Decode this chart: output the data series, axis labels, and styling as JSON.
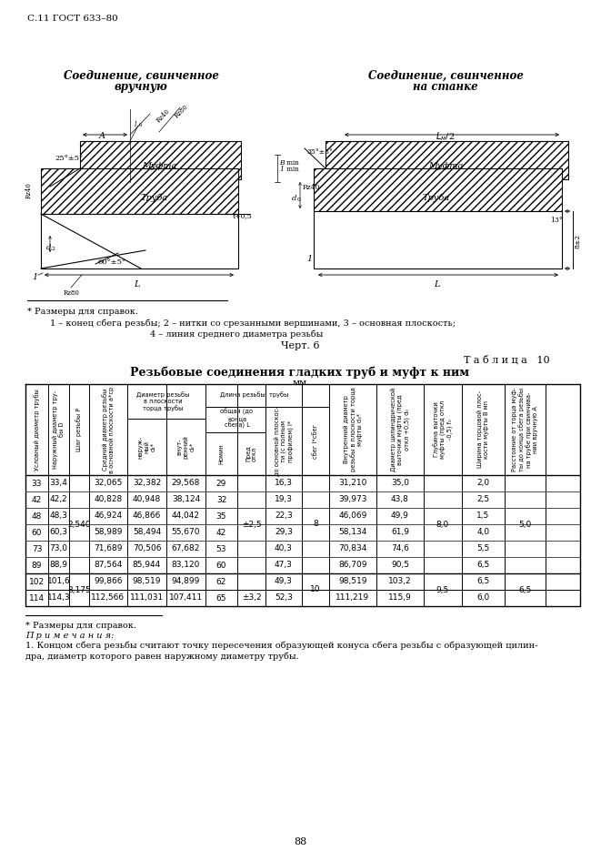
{
  "page_header": "С.11 ГОСТ 633–80",
  "page_number": "88",
  "left_title1": "Соединение, свинченное",
  "left_title2": "вручную",
  "right_title1": "Соединение, свинченное",
  "right_title2": "на станке",
  "notes_star": "* Размеры для справок.",
  "notes_line2": "1 – конец сбега резьбы; 2 – нитки со срезанными вершинами, 3 – основная плоскость;",
  "notes_line3": "4 – линия среднего диаметра резьбы",
  "chert": "Черт. 6",
  "table_label": "Т а б л и ц а   10",
  "table_title": "Резьбовые соединения гладких труб и муфт к ним",
  "table_mm": "мм",
  "footnote_star": "* Размеры для справок.",
  "footnote_prim": "П р и м е ч а н и я:",
  "footnote1": "1. Концом сбега резьбы считают точку пересечения образующей конуса сбега резьбы с образующей цилин-",
  "footnote2": "дра, диаметр которого равен наружному диаметру трубы.",
  "bg": "#ffffff"
}
